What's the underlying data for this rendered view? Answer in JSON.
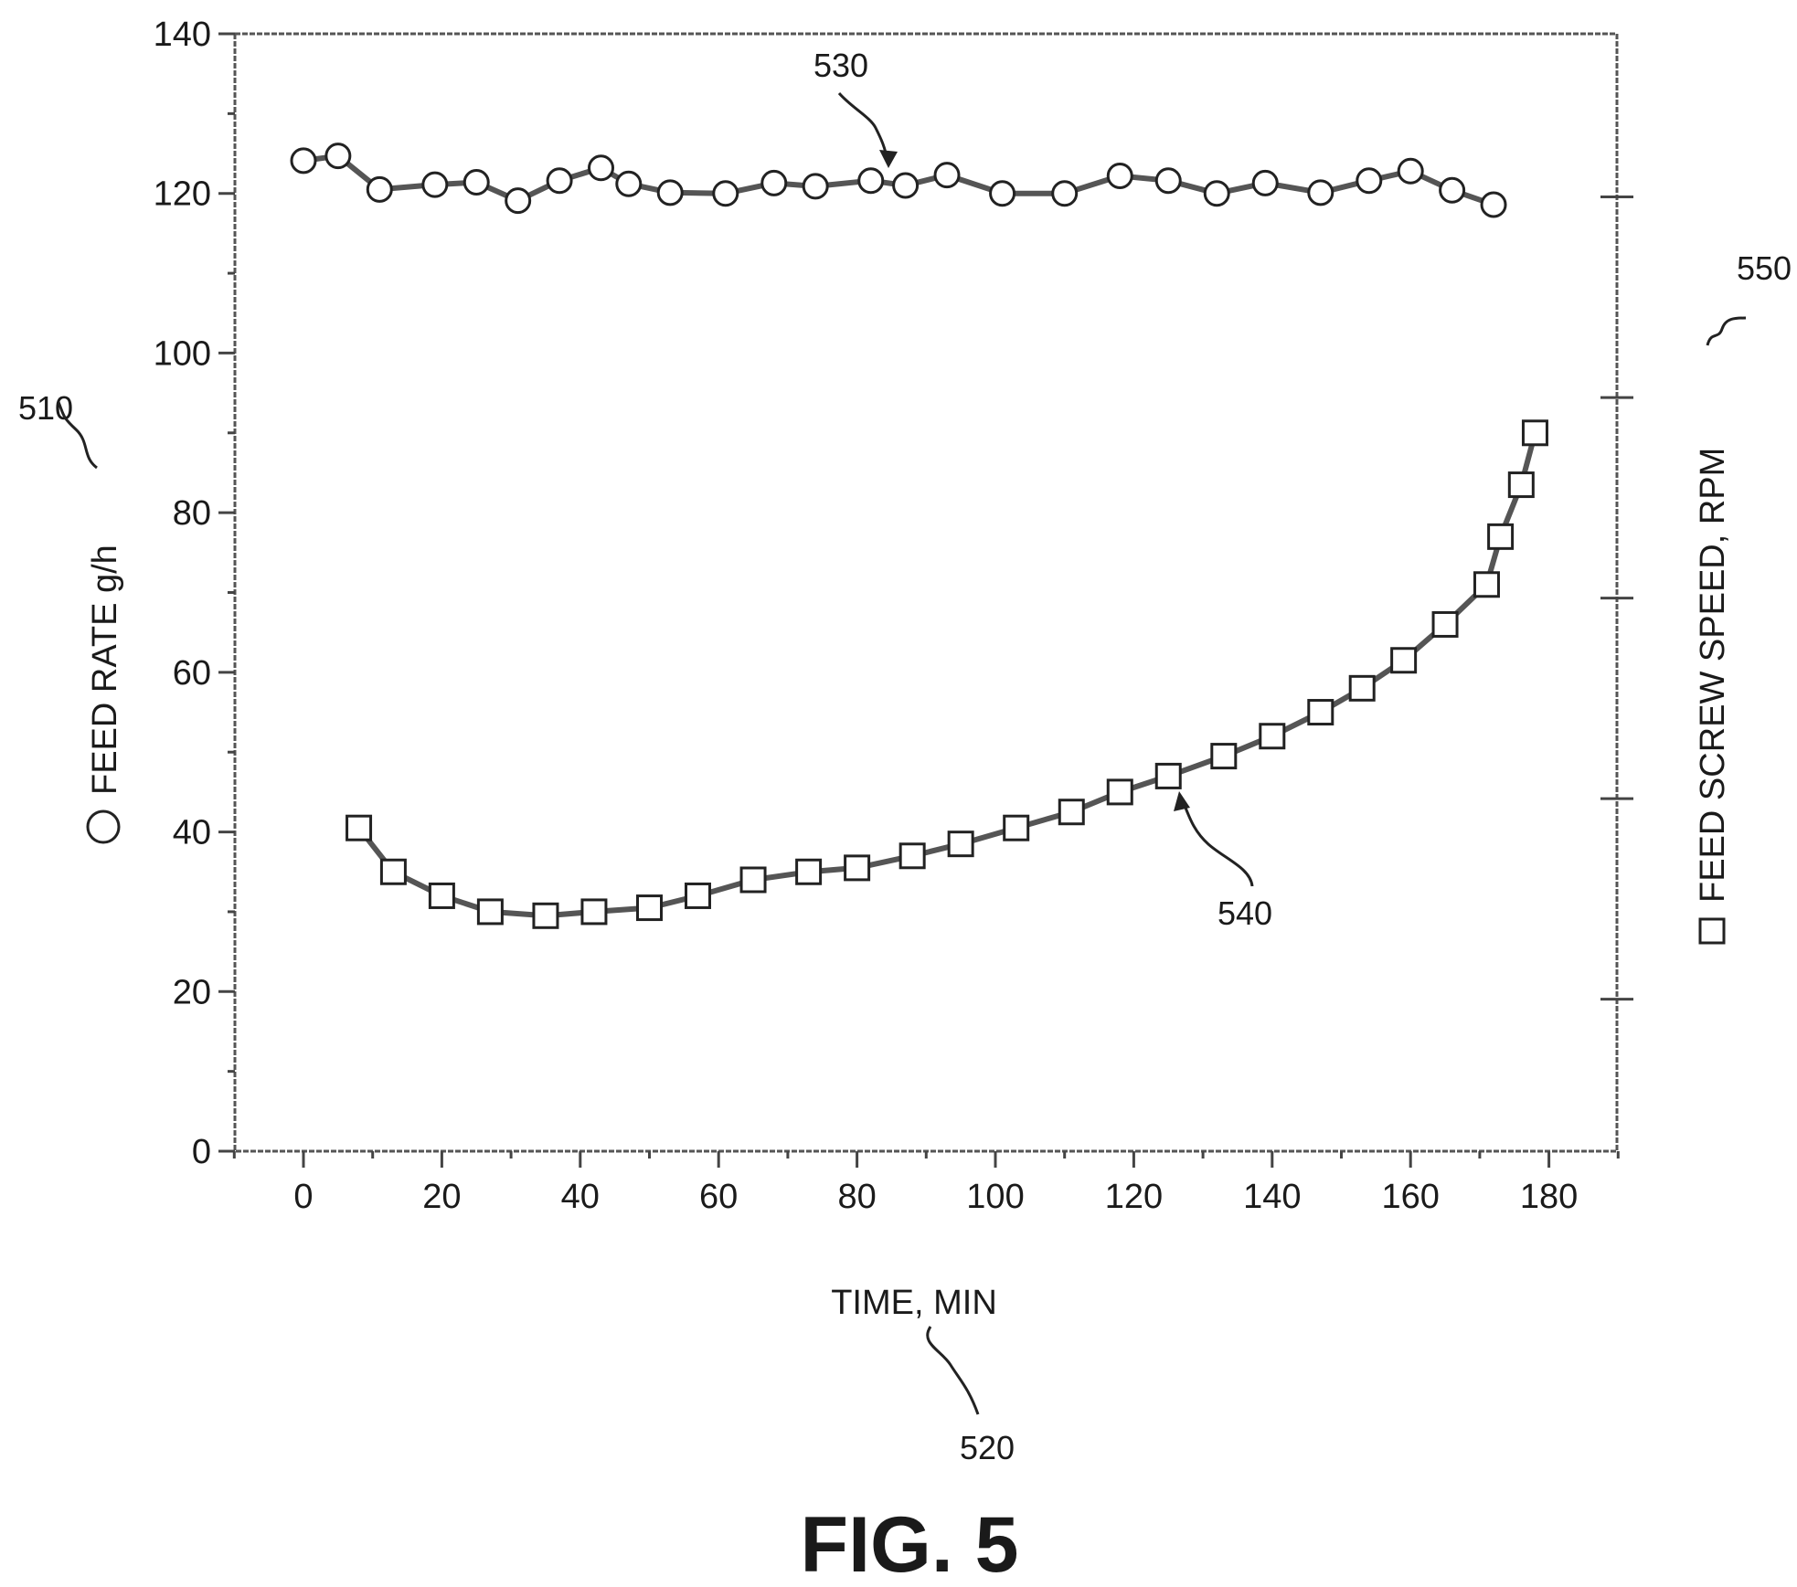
{
  "figure_label": "FIG. 5",
  "chart_data": {
    "type": "line",
    "title": "",
    "xlabel": "TIME, MIN",
    "ylabel": "FEED RATE g/h",
    "y2label": "FEED SCREW SPEED, RPM",
    "xlim": [
      -10,
      190
    ],
    "ylim": [
      0,
      140
    ],
    "x_ticks": [
      "0",
      "20",
      "40",
      "60",
      "80",
      "100",
      "120",
      "140",
      "160",
      "180"
    ],
    "y_ticks": [
      "0",
      "20",
      "40",
      "60",
      "80",
      "100",
      "120",
      "140"
    ],
    "y2_tick_count": 5,
    "grid": false,
    "legend": "marker symbols printed beside axis titles",
    "line_color": "#555555",
    "reference_numerals": {
      "y_axis": "510",
      "x_axis": "520",
      "feed_rate_series": "530",
      "screw_speed_series": "540",
      "y2_axis": "550"
    },
    "series": [
      {
        "key": "feed_rate",
        "marker": "circle",
        "x": [
          0,
          5,
          11,
          19,
          25,
          31,
          37,
          43,
          47,
          53,
          61,
          68,
          74,
          82,
          87,
          93,
          101,
          110,
          118,
          125,
          132,
          139,
          147,
          154,
          160,
          166,
          172
        ],
        "y": [
          124.1,
          124.7,
          120.5,
          121.1,
          121.4,
          119.1,
          121.6,
          123.2,
          121.2,
          120.1,
          120.0,
          121.3,
          120.9,
          121.6,
          121.0,
          122.3,
          120.0,
          120.0,
          122.2,
          121.6,
          120.0,
          121.3,
          120.1,
          121.6,
          122.8,
          120.4,
          118.6
        ]
      },
      {
        "key": "feed_screw_speed",
        "marker": "square",
        "x": [
          8,
          13,
          20,
          27,
          35,
          42,
          50,
          57,
          65,
          73,
          80,
          88,
          95,
          103,
          111,
          118,
          125,
          133,
          140,
          147,
          153,
          159,
          165,
          171,
          173,
          176,
          178
        ],
        "y": [
          40.5,
          35.0,
          32.0,
          30.0,
          29.5,
          30.0,
          30.5,
          32.0,
          34.0,
          35.0,
          35.5,
          37.0,
          38.5,
          40.5,
          42.5,
          45.0,
          47.0,
          49.5,
          52.0,
          55.0,
          58.0,
          61.5,
          66.0,
          71.0,
          77.0,
          83.5,
          90.0
        ]
      }
    ]
  }
}
